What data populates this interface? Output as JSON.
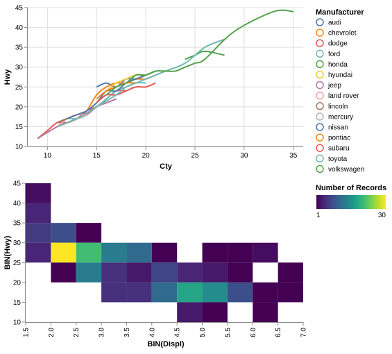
{
  "chart_data": [
    {
      "type": "line",
      "xlabel": "Cty",
      "ylabel": "Hwy",
      "xlim": [
        8,
        36
      ],
      "ylim": [
        10,
        45
      ],
      "xticks": [
        10,
        15,
        20,
        25,
        30,
        35
      ],
      "yticks": [
        10,
        15,
        20,
        25,
        30,
        35,
        40,
        45
      ],
      "grid": true,
      "legend": {
        "title": "Manufacturer",
        "position": "right"
      },
      "series": [
        {
          "name": "audi",
          "color": "#4c78a8",
          "x": [
            15,
            16,
            17,
            18,
            19,
            20,
            21
          ],
          "y": [
            25,
            26,
            25,
            27,
            27,
            28,
            29
          ]
        },
        {
          "name": "chevrolet",
          "color": "#f58518",
          "x": [
            11,
            12,
            13,
            14,
            15,
            16,
            17,
            18,
            19,
            20,
            21,
            22
          ],
          "y": [
            15,
            16,
            17,
            19,
            23,
            25,
            26,
            26,
            27,
            27,
            28,
            29
          ]
        },
        {
          "name": "dodge",
          "color": "#e45756",
          "x": [
            9,
            10,
            11,
            12,
            13,
            14,
            15,
            16,
            17,
            18
          ],
          "y": [
            12,
            14,
            16,
            16,
            17,
            19,
            20,
            22,
            24,
            24
          ]
        },
        {
          "name": "ford",
          "color": "#72b7b2",
          "x": [
            11,
            12,
            13,
            14,
            15,
            16,
            17,
            18,
            19,
            20
          ],
          "y": [
            16,
            17,
            17,
            18,
            20,
            22,
            24,
            25,
            26,
            26
          ]
        },
        {
          "name": "honda",
          "color": "#54a24b",
          "x": [
            24,
            25,
            26,
            28
          ],
          "y": [
            32,
            33,
            34,
            33
          ]
        },
        {
          "name": "hyundai",
          "color": "#eeca3b",
          "x": [
            16,
            17,
            18,
            19,
            20,
            21
          ],
          "y": [
            24,
            26,
            27,
            28,
            28,
            29
          ]
        },
        {
          "name": "jeep",
          "color": "#b279a2",
          "x": [
            9,
            11,
            12,
            13,
            14,
            15,
            16,
            17
          ],
          "y": [
            12,
            15,
            16,
            17,
            18,
            20,
            21,
            22
          ]
        },
        {
          "name": "land rover",
          "color": "#ff9da6",
          "x": [
            11,
            12,
            13,
            14
          ],
          "y": [
            15,
            17,
            18,
            18
          ]
        },
        {
          "name": "lincoln",
          "color": "#9d755d",
          "x": [
            11,
            12
          ],
          "y": [
            16,
            17
          ]
        },
        {
          "name": "mercury",
          "color": "#bab0ac",
          "x": [
            13,
            14
          ],
          "y": [
            17,
            18
          ]
        },
        {
          "name": "nissan",
          "color": "#4c78a8",
          "x": [
            12,
            13,
            14,
            15,
            16,
            17,
            18,
            19,
            20,
            21
          ],
          "y": [
            17,
            18,
            19,
            21,
            24,
            24,
            26,
            27,
            28,
            29
          ]
        },
        {
          "name": "pontiac",
          "color": "#f58518",
          "x": [
            15,
            16,
            17,
            18,
            19
          ],
          "y": [
            22,
            24,
            25,
            26,
            26
          ]
        },
        {
          "name": "subaru",
          "color": "#e45756",
          "x": [
            15,
            16,
            17,
            18,
            19,
            20,
            21
          ],
          "y": [
            21,
            23,
            23,
            24,
            25,
            25,
            26
          ]
        },
        {
          "name": "toyota",
          "color": "#72b7b2",
          "x": [
            11,
            13,
            15,
            17,
            18,
            19,
            20,
            21,
            22,
            24,
            26,
            28
          ],
          "y": [
            15,
            17,
            20,
            23,
            25,
            26,
            27,
            28,
            29,
            31,
            35,
            37
          ]
        },
        {
          "name": "volkswagen",
          "color": "#54a24b",
          "x": [
            16,
            17,
            18,
            19,
            20,
            21,
            22,
            23,
            24,
            25,
            26,
            29,
            33,
            35
          ],
          "y": [
            23,
            25,
            26,
            28,
            28,
            29,
            29,
            29,
            30,
            31,
            32,
            39,
            44,
            44
          ]
        }
      ]
    },
    {
      "type": "heatmap",
      "xlabel": "BIN(Displ)",
      "ylabel": "BIN(Hwy)",
      "xlim": [
        1.5,
        7.0
      ],
      "ylim": [
        10,
        45
      ],
      "xticks": [
        "1.5",
        "2.0",
        "2.5",
        "3.0",
        "3.5",
        "4.0",
        "4.5",
        "5.0",
        "5.5",
        "6.0",
        "6.5",
        "7.0"
      ],
      "yticks": [
        10,
        15,
        20,
        25,
        30,
        35,
        40,
        45
      ],
      "x_bin_width": 0.5,
      "y_bin_width": 5,
      "legend": {
        "title": "Number of Records",
        "position": "right",
        "min": 1,
        "max": 30
      },
      "cells": [
        {
          "x": 1.5,
          "y": 40,
          "count": 2
        },
        {
          "x": 1.5,
          "y": 35,
          "count": 4
        },
        {
          "x": 1.5,
          "y": 30,
          "count": 6
        },
        {
          "x": 1.5,
          "y": 25,
          "count": 4
        },
        {
          "x": 2.0,
          "y": 30,
          "count": 8
        },
        {
          "x": 2.0,
          "y": 25,
          "count": 30
        },
        {
          "x": 2.0,
          "y": 20,
          "count": 1
        },
        {
          "x": 2.5,
          "y": 30,
          "count": 1
        },
        {
          "x": 2.5,
          "y": 25,
          "count": 21
        },
        {
          "x": 2.5,
          "y": 20,
          "count": 13
        },
        {
          "x": 3.0,
          "y": 25,
          "count": 13
        },
        {
          "x": 3.0,
          "y": 20,
          "count": 5
        },
        {
          "x": 3.0,
          "y": 15,
          "count": 5
        },
        {
          "x": 3.5,
          "y": 25,
          "count": 11
        },
        {
          "x": 3.5,
          "y": 20,
          "count": 3
        },
        {
          "x": 3.5,
          "y": 15,
          "count": 5
        },
        {
          "x": 4.0,
          "y": 25,
          "count": 1
        },
        {
          "x": 4.0,
          "y": 20,
          "count": 7
        },
        {
          "x": 4.0,
          "y": 15,
          "count": 11
        },
        {
          "x": 4.5,
          "y": 20,
          "count": 4
        },
        {
          "x": 4.5,
          "y": 15,
          "count": 18
        },
        {
          "x": 4.5,
          "y": 10,
          "count": 3
        },
        {
          "x": 5.0,
          "y": 25,
          "count": 1
        },
        {
          "x": 5.0,
          "y": 20,
          "count": 3
        },
        {
          "x": 5.0,
          "y": 15,
          "count": 15
        },
        {
          "x": 5.0,
          "y": 10,
          "count": 1
        },
        {
          "x": 5.5,
          "y": 25,
          "count": 1
        },
        {
          "x": 5.5,
          "y": 20,
          "count": 1
        },
        {
          "x": 5.5,
          "y": 15,
          "count": 8
        },
        {
          "x": 6.0,
          "y": 25,
          "count": 2
        },
        {
          "x": 6.0,
          "y": 15,
          "count": 1
        },
        {
          "x": 6.0,
          "y": 10,
          "count": 1
        },
        {
          "x": 6.5,
          "y": 20,
          "count": 1
        },
        {
          "x": 6.5,
          "y": 15,
          "count": 1
        }
      ]
    }
  ]
}
